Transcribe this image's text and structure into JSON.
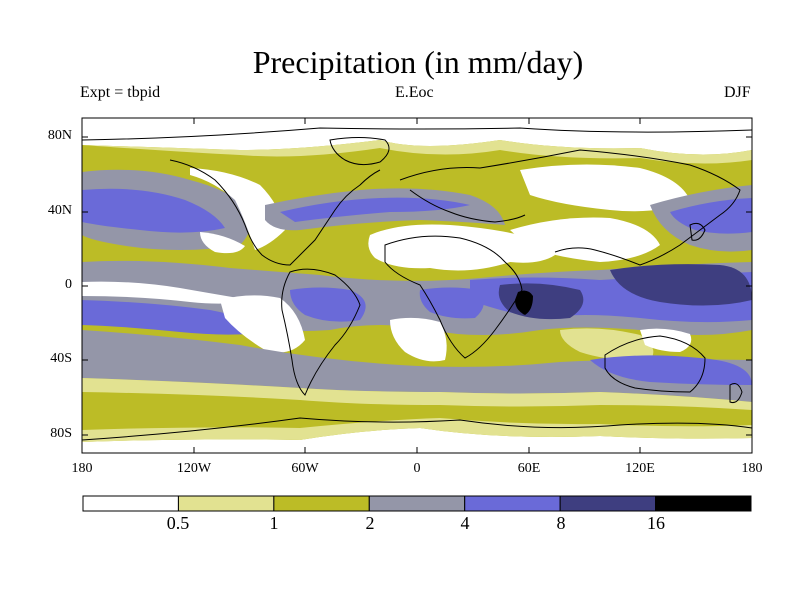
{
  "header": {
    "title": "Precipitation (in mm/day)",
    "left_label": "Expt = tbpid",
    "center_label": "E.Eoc",
    "right_label": "DJF"
  },
  "map": {
    "lat_ticks": [
      "80N",
      "40N",
      "0",
      "40S",
      "80S"
    ],
    "lon_ticks": [
      "180",
      "120W",
      "60W",
      "0",
      "60E",
      "120E",
      "180"
    ]
  },
  "colorbar": {
    "labels": [
      "0.5",
      "1",
      "2",
      "4",
      "8",
      "16"
    ],
    "colors": [
      "#ffffff",
      "#e2e291",
      "#bcbc26",
      "#9496a8",
      "#6a6ad8",
      "#3e3e80",
      "#000000"
    ]
  },
  "palette": {
    "white": "#ffffff",
    "light_yellow": "#e2e291",
    "olive": "#bcbc26",
    "gray_blue": "#9496a8",
    "blue": "#6a6ad8",
    "dark_blue": "#3e3e80",
    "black": "#000000"
  }
}
